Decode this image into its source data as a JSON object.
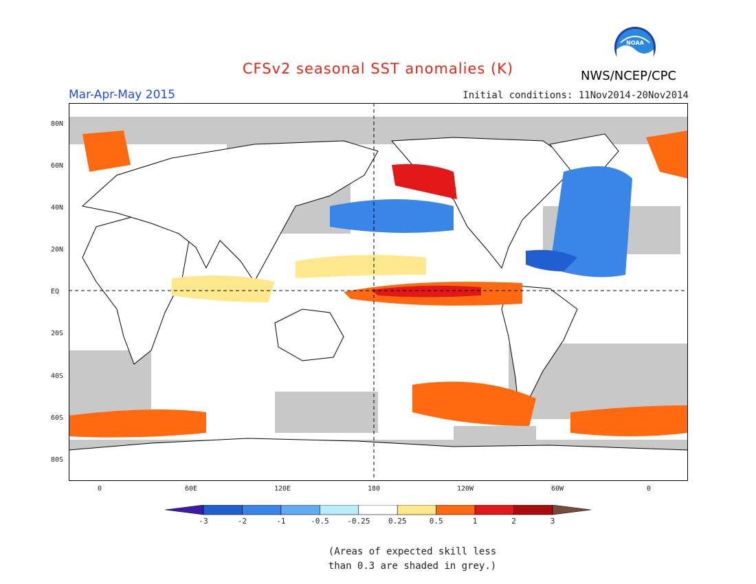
{
  "header": {
    "title": "CFSv2 seasonal SST anomalies (K)",
    "title_color": "#e0291b",
    "agency": "NWS/NCEP/CPC",
    "season": "Mar-Apr-May 2015",
    "season_color": "#1f4fd8",
    "initial_conditions": "Initial conditions: 11Nov2014-20Nov2014",
    "logo_text": "NOAA"
  },
  "map": {
    "land_color": "#ffffff",
    "low_skill_color": "#c8c8c8",
    "lat_labels": [
      "80N",
      "60N",
      "40N",
      "20N",
      "EQ",
      "20S",
      "40S",
      "60S",
      "80S"
    ],
    "lon_labels": [
      "0",
      "60E",
      "120E",
      "180",
      "120W",
      "60W",
      "0"
    ]
  },
  "colorbar": {
    "labels": [
      "-3",
      "-2",
      "-1",
      "-0.5",
      "-0.25",
      "0.25",
      "0.5",
      "1",
      "2",
      "3"
    ],
    "colors": [
      "#3d1aa8",
      "#1f5fd0",
      "#3a86e8",
      "#60acf0",
      "#b8ecf8",
      "#ffffff",
      "#ffe88c",
      "#ff6a10",
      "#e01818",
      "#a80c0c",
      "#7a4a3a"
    ]
  },
  "footnote": {
    "line1": "(Areas of expected skill less",
    "line2": "than 0.3 are shaded in grey.)"
  }
}
